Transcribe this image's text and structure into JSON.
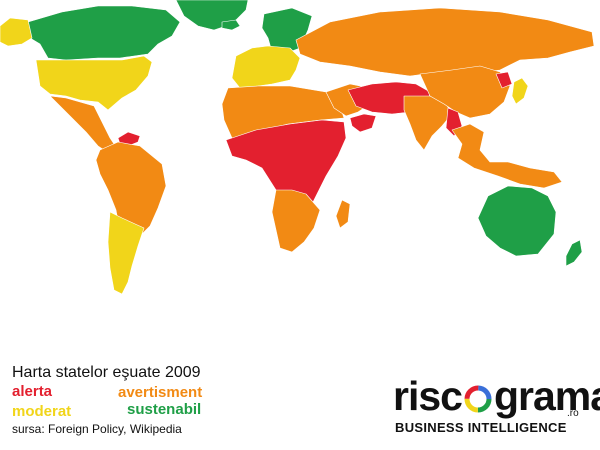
{
  "legend": {
    "title": "Harta statelor eşuate 2009",
    "alerta": "alerta",
    "avertisment": "avertisment",
    "moderat": "moderat",
    "sustenabil": "sustenabil",
    "source": "sursa: Foreign Policy, Wikipedia"
  },
  "logo": {
    "left": "risc",
    "right": "grama",
    "suffix": ".ro",
    "tagline": "BUSINESS INTELLIGENCE"
  },
  "colors": {
    "alerta": "#e3202f",
    "avertisment": "#f28a14",
    "moderat": "#f1d51a",
    "sustenabil": "#1f9f47",
    "ocean": "#ffffff"
  },
  "regions": [
    {
      "region": "Greenland",
      "category": "sustenabil"
    },
    {
      "region": "Canada",
      "category": "sustenabil"
    },
    {
      "region": "Alaska",
      "category": "moderat"
    },
    {
      "region": "United States",
      "category": "moderat"
    },
    {
      "region": "Mexico and Central America",
      "category": "avertisment"
    },
    {
      "region": "Caribbean",
      "category": "alerta"
    },
    {
      "region": "South America",
      "category": "avertisment"
    },
    {
      "region": "Chile, Argentina, Uruguay",
      "category": "moderat"
    },
    {
      "region": "Iceland",
      "category": "sustenabil"
    },
    {
      "region": "Scandinavia",
      "category": "sustenabil"
    },
    {
      "region": "Western Europe",
      "category": "moderat"
    },
    {
      "region": "Russia and Central Asia",
      "category": "avertisment"
    },
    {
      "region": "North Africa",
      "category": "avertisment"
    },
    {
      "region": "Central and East Africa",
      "category": "alerta"
    },
    {
      "region": "Southern Africa",
      "category": "avertisment"
    },
    {
      "region": "Middle East",
      "category": "avertisment"
    },
    {
      "region": "Iraq, Iran, Afghanistan, Pakistan",
      "category": "alerta"
    },
    {
      "region": "Yemen",
      "category": "alerta"
    },
    {
      "region": "India",
      "category": "avertisment"
    },
    {
      "region": "China",
      "category": "avertisment"
    },
    {
      "region": "Myanmar",
      "category": "alerta"
    },
    {
      "region": "North Korea",
      "category": "alerta"
    },
    {
      "region": "Japan",
      "category": "moderat"
    },
    {
      "region": "Southeast Asia and Indonesia",
      "category": "avertisment"
    },
    {
      "region": "Australia",
      "category": "sustenabil"
    },
    {
      "region": "New Zealand",
      "category": "sustenabil"
    },
    {
      "region": "Madagascar",
      "category": "avertisment"
    }
  ]
}
